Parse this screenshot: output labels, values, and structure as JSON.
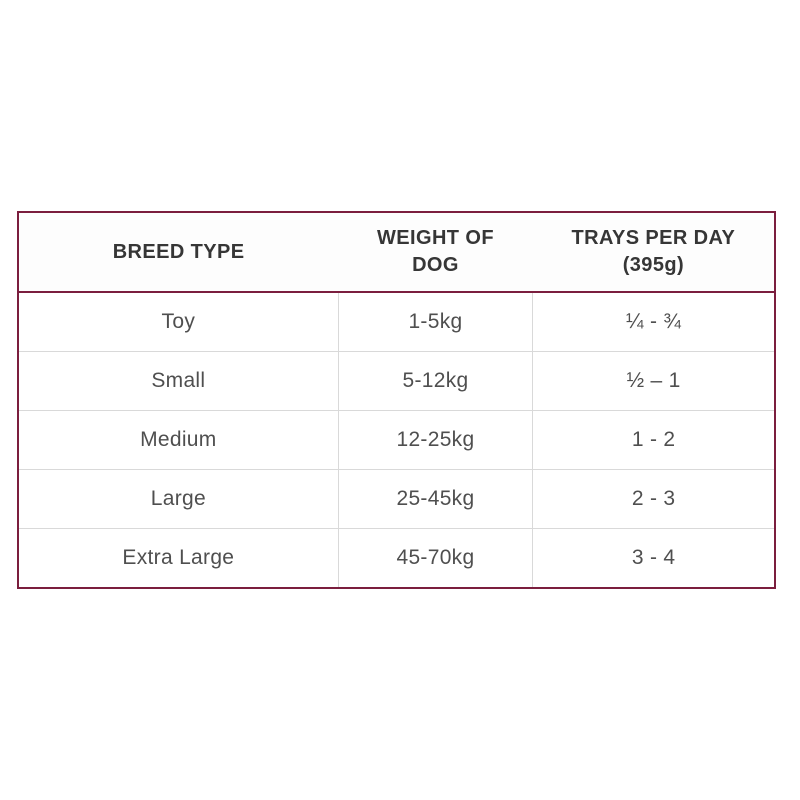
{
  "colors": {
    "table_border": "#7b1e3e",
    "grid_line": "#d9d9d9",
    "header_text": "#363636",
    "body_text": "#4f4f4f",
    "background": "#ffffff"
  },
  "table": {
    "header_display": [
      "BREED TYPE",
      "WEIGHT OF\nDOG",
      "TRAYS PER DAY\n(395g)"
    ]
  },
  "chart_data": {
    "type": "table",
    "title": "",
    "columns": [
      "BREED TYPE",
      "WEIGHT OF DOG",
      "TRAYS PER DAY (395g)"
    ],
    "rows": [
      [
        "Toy",
        "1-5kg",
        "¼ - ¾"
      ],
      [
        "Small",
        "5-12kg",
        "½ – 1"
      ],
      [
        "Medium",
        "12-25kg",
        "1 - 2"
      ],
      [
        "Large",
        "25-45kg",
        "2 - 3"
      ],
      [
        "Extra Large",
        "45-70kg",
        "3 - 4"
      ]
    ]
  }
}
